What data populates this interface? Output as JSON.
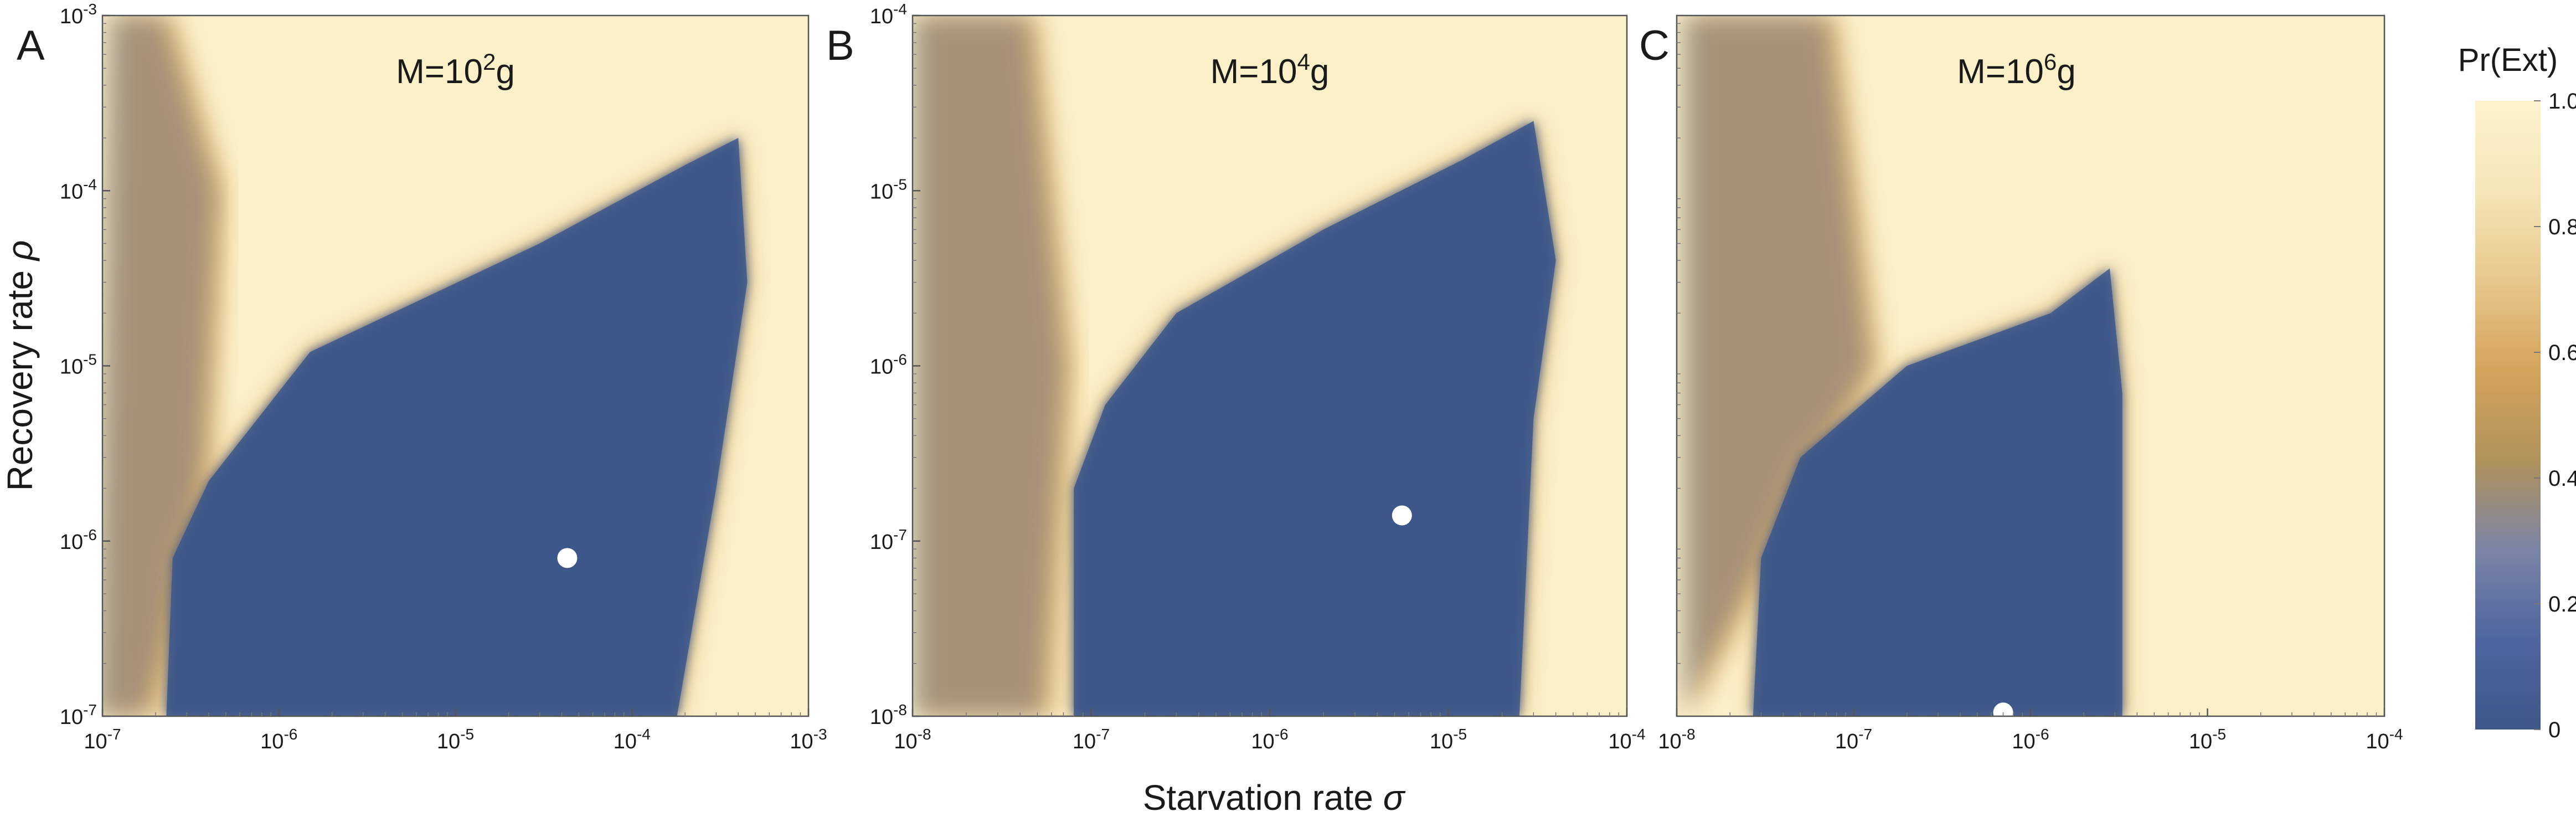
{
  "figure": {
    "xlabel": "Starvation rate σ",
    "ylabel": "Recovery rate ρ",
    "colorbar": {
      "title": "Pr(Ext)",
      "ticks": [
        "1.0",
        "0.8",
        "0.6",
        "0.4",
        "0.2",
        "0"
      ],
      "colors": [
        "#3d578a",
        "#4f66a0",
        "#7b84a6",
        "#b0925a",
        "#d4a35a",
        "#e7c78b",
        "#f5e6b8",
        "#fdf2cc"
      ]
    },
    "colors": {
      "ext_high": "#fbf0c8",
      "ext_low": "#3d578a",
      "ext_mid": "#d9a75f",
      "point": "#ffffff"
    }
  },
  "chart_data": [
    {
      "type": "heatmap",
      "panel": "A",
      "title_prefix": "M=10",
      "title_exp": "2",
      "title_suffix": "g",
      "xscale": "log",
      "yscale": "log",
      "xlim": [
        1e-07,
        0.001
      ],
      "ylim": [
        1e-07,
        0.001
      ],
      "xticks": [
        {
          "base": "10",
          "exp": "-7"
        },
        {
          "base": "10",
          "exp": "-6"
        },
        {
          "base": "10",
          "exp": "-5"
        },
        {
          "base": "10",
          "exp": "-4"
        },
        {
          "base": "10",
          "exp": "-3"
        }
      ],
      "yticks": [
        {
          "base": "10",
          "exp": "-7"
        },
        {
          "base": "10",
          "exp": "-6"
        },
        {
          "base": "10",
          "exp": "-5"
        },
        {
          "base": "10",
          "exp": "-4"
        },
        {
          "base": "10",
          "exp": "-3"
        }
      ],
      "survival_region": [
        [
          2.3e-07,
          1e-07
        ],
        [
          0.00018,
          1e-07
        ],
        [
          0.0003,
          2e-06
        ],
        [
          0.00045,
          3e-05
        ],
        [
          0.0004,
          0.0002
        ],
        [
          0.0002,
          0.00014
        ],
        [
          3e-05,
          5e-05
        ],
        [
          1.5e-06,
          1.2e-05
        ],
        [
          4e-07,
          2.2e-06
        ],
        [
          2.5e-07,
          8e-07
        ]
      ],
      "mixed_band": [
        [
          1.2e-07,
          0.001
        ],
        [
          2.5e-07,
          0.001
        ],
        [
          5e-07,
          0.0001
        ],
        [
          4e-07,
          1e-06
        ],
        [
          2e-07,
          1e-07
        ],
        [
          1e-07,
          1e-07
        ]
      ],
      "point": {
        "x": 4.3e-05,
        "y": 8e-07
      }
    },
    {
      "type": "heatmap",
      "panel": "B",
      "title_prefix": "M=10",
      "title_exp": "4",
      "title_suffix": "g",
      "xscale": "log",
      "yscale": "log",
      "xlim": [
        1e-08,
        0.0001
      ],
      "ylim": [
        1e-08,
        0.0001
      ],
      "xticks": [
        {
          "base": "10",
          "exp": "-8"
        },
        {
          "base": "10",
          "exp": "-7"
        },
        {
          "base": "10",
          "exp": "-6"
        },
        {
          "base": "10",
          "exp": "-5"
        },
        {
          "base": "10",
          "exp": "-4"
        }
      ],
      "yticks": [
        {
          "base": "10",
          "exp": "-8"
        },
        {
          "base": "10",
          "exp": "-7"
        },
        {
          "base": "10",
          "exp": "-6"
        },
        {
          "base": "10",
          "exp": "-5"
        },
        {
          "base": "10",
          "exp": "-4"
        }
      ],
      "survival_region": [
        [
          8e-08,
          1e-08
        ],
        [
          2.5e-05,
          1e-08
        ],
        [
          3e-05,
          5e-07
        ],
        [
          4e-05,
          4e-06
        ],
        [
          3e-05,
          2.5e-05
        ],
        [
          1.2e-05,
          1.5e-05
        ],
        [
          2e-06,
          6e-06
        ],
        [
          3e-07,
          2e-06
        ],
        [
          1.2e-07,
          6e-07
        ],
        [
          8e-08,
          2e-07
        ]
      ],
      "mixed_band": [
        [
          1.1e-08,
          0.0001
        ],
        [
          5e-08,
          0.0001
        ],
        [
          8e-08,
          1e-06
        ],
        [
          6e-08,
          1e-08
        ],
        [
          1.1e-08,
          1e-08
        ]
      ],
      "point": {
        "x": 5.5e-06,
        "y": 1.4e-07
      }
    },
    {
      "type": "heatmap",
      "panel": "C",
      "title_prefix": "M=10",
      "title_exp": "6",
      "title_suffix": "g",
      "xscale": "log",
      "yscale": "log",
      "xlim": [
        1e-08,
        0.0001
      ],
      "ylim": [
        1e-08,
        0.0001
      ],
      "xticks": [
        {
          "base": "10",
          "exp": "-8"
        },
        {
          "base": "10",
          "exp": "-7"
        },
        {
          "base": "10",
          "exp": "-6"
        },
        {
          "base": "10",
          "exp": "-5"
        },
        {
          "base": "10",
          "exp": "-4"
        }
      ],
      "yticks": [],
      "survival_region": [
        [
          2.7e-08,
          1e-08
        ],
        [
          3.3e-06,
          1e-08
        ],
        [
          3.3e-06,
          7e-07
        ],
        [
          2.8e-06,
          3.6e-06
        ],
        [
          1.3e-06,
          2e-06
        ],
        [
          2e-07,
          1e-06
        ],
        [
          5e-08,
          3e-07
        ],
        [
          3e-08,
          8e-08
        ]
      ],
      "mixed_band": [
        [
          1.2e-08,
          0.0001
        ],
        [
          8e-08,
          0.0001
        ],
        [
          1.4e-07,
          1e-06
        ],
        [
          4e-08,
          1e-07
        ],
        [
          1.2e-08,
          1e-08
        ]
      ],
      "point": {
        "x": 7e-07,
        "y": 1.05e-08
      }
    }
  ]
}
